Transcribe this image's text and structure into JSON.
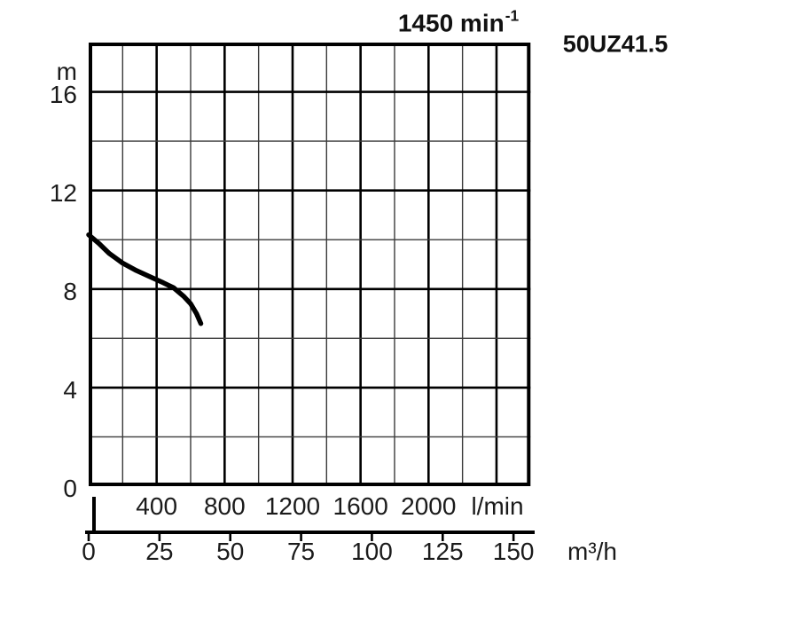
{
  "header": {
    "speed_label": "1450 min",
    "speed_superscript": "-1",
    "model": "50UZ41.5"
  },
  "chart_data": {
    "type": "line",
    "title": "1450 min⁻¹",
    "model": "50UZ41.5",
    "grid": true,
    "legend": "none",
    "y_axis": {
      "unit": "m",
      "ticks": [
        16,
        12,
        8,
        4,
        0
      ],
      "minor_step_m": 2,
      "range_m": [
        0,
        18
      ]
    },
    "x_axis_lmin": {
      "unit": "l/min",
      "ticks": [
        400,
        800,
        1200,
        1600,
        2000
      ],
      "minor_step_lmin": 200,
      "range_lmin": [
        0,
        2600
      ]
    },
    "x_axis_m3h": {
      "unit": "m³/h",
      "ticks": [
        0,
        25,
        50,
        75,
        100,
        125,
        150
      ],
      "range_m3h": [
        0,
        156
      ]
    },
    "series": [
      {
        "name": "head-capacity-curve",
        "x_lmin": [
          0,
          60,
          120,
          200,
          280,
          360,
          440,
          500,
          560,
          600,
          635,
          660
        ],
        "y_m": [
          10.2,
          9.85,
          9.45,
          9.05,
          8.75,
          8.5,
          8.25,
          8.05,
          7.7,
          7.4,
          7.0,
          6.6
        ]
      }
    ]
  },
  "colors": {
    "curve": "#000000",
    "grid_major": "#000000",
    "grid_minor": "#3a3a3a",
    "border": "#000000",
    "text": "#1b1b1b",
    "background": "#ffffff"
  }
}
